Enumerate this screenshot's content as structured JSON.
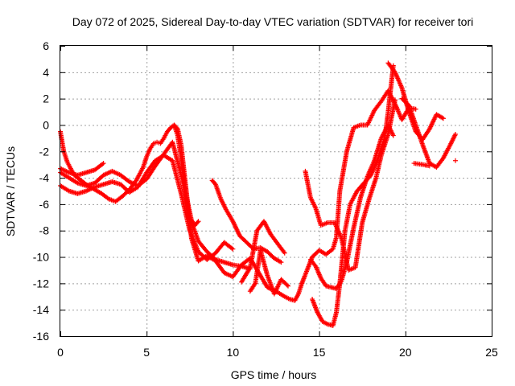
{
  "chart_data": {
    "type": "scatter",
    "title": "Day 072 of 2025, Sidereal Day-to-day VTEC variation (SDTVAR) for receiver tori",
    "xlabel": "GPS time / hours",
    "ylabel": "SDTVAR / TECUs",
    "xlim": [
      0,
      25
    ],
    "ylim": [
      -16,
      6
    ],
    "xticks": [
      0,
      5,
      10,
      15,
      20,
      25
    ],
    "yticks": [
      -16,
      -14,
      -12,
      -10,
      -8,
      -6,
      -4,
      -2,
      0,
      2,
      4,
      6
    ],
    "grid": true,
    "marker": "+",
    "color": "#ff0000",
    "series": [
      {
        "x": [
          0.0,
          0.2,
          0.4,
          0.6,
          0.8,
          1.0,
          1.3,
          1.6,
          2.0,
          2.4,
          2.8,
          3.2,
          3.6,
          4.0,
          4.4,
          4.8,
          5.0,
          5.2,
          5.4,
          5.6,
          5.8,
          6.0,
          6.2,
          6.4,
          6.6,
          6.8,
          7.0,
          7.2,
          7.4,
          7.6,
          7.8,
          8.0
        ],
        "y": [
          -0.5,
          -2.0,
          -2.8,
          -3.3,
          -3.8,
          -4.0,
          -4.3,
          -4.6,
          -4.9,
          -5.2,
          -5.6,
          -5.8,
          -5.4,
          -4.9,
          -4.2,
          -3.2,
          -2.4,
          -1.8,
          -1.4,
          -1.3,
          -1.4,
          -1.0,
          -0.5,
          -0.2,
          0.0,
          -0.8,
          -2.5,
          -4.5,
          -6.0,
          -7.2,
          -7.6,
          -7.3
        ]
      },
      {
        "x": [
          0.0,
          0.5,
          1.0,
          1.5,
          2.0,
          2.5,
          3.0,
          3.5,
          4.0,
          4.5,
          5.0,
          5.5,
          6.0,
          6.5,
          7.0,
          7.5,
          8.0,
          8.5,
          9.0,
          9.5,
          10.0,
          10.5,
          11.0
        ],
        "y": [
          -3.6,
          -4.0,
          -4.4,
          -4.6,
          -4.4,
          -3.8,
          -3.5,
          -3.8,
          -4.3,
          -4.6,
          -4.1,
          -3.1,
          -2.2,
          -1.3,
          -3.8,
          -7.0,
          -8.8,
          -9.6,
          -10.2,
          -10.4,
          -10.6,
          -10.7,
          -10.9
        ]
      },
      {
        "x": [
          0.0,
          0.5,
          1.0,
          1.5,
          2.0,
          2.5,
          3.0,
          3.5,
          4.0,
          4.5,
          5.0,
          5.5,
          6.0,
          6.5,
          7.0,
          7.5,
          8.0,
          8.5,
          9.0,
          9.5,
          10.0
        ],
        "y": [
          -4.6,
          -5.0,
          -5.2,
          -5.0,
          -4.7,
          -4.5,
          -4.3,
          -4.5,
          -5.1,
          -4.7,
          -3.6,
          -2.7,
          -2.3,
          -2.7,
          -5.2,
          -8.0,
          -9.6,
          -10.2,
          -9.7,
          -8.9,
          -9.4
        ]
      },
      {
        "x": [
          0.0,
          0.5,
          1.0,
          1.5,
          2.0,
          2.5
        ],
        "y": [
          -3.3,
          -3.6,
          -3.8,
          -3.6,
          -3.4,
          -2.9
        ]
      },
      {
        "x": [
          6.6,
          6.8,
          7.0,
          7.3,
          7.6,
          8.0,
          8.5,
          9.0,
          9.5,
          10.0,
          10.5,
          11.0,
          11.5,
          12.0,
          12.5,
          13.0,
          13.3,
          13.6,
          13.8,
          14.0
        ],
        "y": [
          0.0,
          -0.3,
          -1.5,
          -5.0,
          -8.6,
          -10.3,
          -9.9,
          -10.3,
          -11.2,
          -11.5,
          -10.6,
          -10.1,
          -11.2,
          -12.3,
          -12.6,
          -13.0,
          -13.2,
          -13.3,
          -12.8,
          -12.0
        ]
      },
      {
        "x": [
          8.8,
          9.0,
          9.3,
          9.6,
          10.0,
          10.4,
          10.8,
          11.2,
          11.6,
          12.0,
          12.4,
          12.8
        ],
        "y": [
          -4.2,
          -4.5,
          -5.6,
          -6.4,
          -7.3,
          -8.4,
          -8.9,
          -9.4,
          -9.3,
          -9.6,
          -10.1,
          -10.4
        ]
      },
      {
        "x": [
          10.5,
          11.0,
          11.4,
          11.8,
          12.2,
          12.6,
          13.0
        ],
        "y": [
          -11.9,
          -10.8,
          -8.0,
          -7.3,
          -8.3,
          -9.0,
          -9.7
        ]
      },
      {
        "x": [
          11.0,
          11.3,
          11.6,
          12.0,
          12.4,
          12.8,
          13.2
        ],
        "y": [
          -12.6,
          -12.0,
          -9.5,
          -11.4,
          -12.8,
          -11.7,
          -12.2
        ]
      },
      {
        "x": [
          14.0,
          14.3,
          14.6,
          15.0,
          15.4,
          15.8,
          16.0,
          16.2,
          16.6,
          17.0,
          17.4,
          17.8,
          18.2,
          18.6,
          19.0,
          19.4,
          19.8,
          20.2,
          20.6
        ],
        "y": [
          -12.0,
          -11.0,
          -10.0,
          -9.5,
          -9.8,
          -9.4,
          -8.5,
          -5.0,
          -2.0,
          -0.2,
          0.0,
          0.0,
          1.1,
          1.8,
          2.6,
          1.6,
          0.4,
          1.3,
          1.2
        ]
      },
      {
        "x": [
          14.2,
          14.5,
          14.8,
          15.1,
          15.5,
          15.9,
          16.3,
          16.7,
          17.1,
          17.5,
          17.9,
          18.3,
          18.6,
          19.0,
          19.4
        ],
        "y": [
          -3.5,
          -5.5,
          -6.3,
          -7.6,
          -7.4,
          -7.4,
          -8.6,
          -11.0,
          -10.8,
          -7.4,
          -5.6,
          -4.0,
          -2.3,
          -0.7,
          1.9
        ]
      },
      {
        "x": [
          14.5,
          14.8,
          15.1,
          15.4,
          15.7,
          16.0,
          16.3,
          16.6,
          17.0,
          17.4,
          17.8,
          18.2,
          18.6,
          19.0,
          19.3
        ],
        "y": [
          -10.2,
          -10.7,
          -11.6,
          -12.2,
          -12.3,
          -12.4,
          -11.8,
          -10.4,
          -7.8,
          -5.5,
          -3.9,
          -2.7,
          -1.0,
          0.0,
          -0.8
        ]
      },
      {
        "x": [
          14.6,
          14.9,
          15.2,
          15.5,
          15.8,
          16.0,
          16.2,
          16.5,
          16.8,
          17.2,
          17.6,
          18.0,
          18.4,
          18.8,
          19.0,
          19.3
        ],
        "y": [
          -13.2,
          -14.2,
          -14.9,
          -15.1,
          -15.2,
          -14.2,
          -12.0,
          -8.0,
          -6.0,
          -5.0,
          -4.4,
          -3.8,
          -2.6,
          -1.0,
          1.0,
          4.5
        ]
      },
      {
        "x": [
          19.0,
          19.4,
          19.8,
          20.2,
          20.6,
          21.0,
          21.4,
          21.8,
          22.2
        ],
        "y": [
          4.7,
          4.0,
          2.8,
          1.0,
          -0.5,
          -1.1,
          -0.3,
          0.8,
          0.5
        ]
      },
      {
        "x": [
          19.8,
          20.2,
          20.6,
          21.0,
          21.4,
          21.8,
          22.2,
          22.6,
          22.9
        ],
        "y": [
          2.0,
          1.5,
          0.0,
          -1.5,
          -2.9,
          -3.2,
          -2.5,
          -1.5,
          -0.7
        ]
      },
      {
        "x": [
          20.5,
          21.0,
          21.4
        ],
        "y": [
          -2.9,
          -3.0,
          -3.1
        ]
      },
      {
        "x": [
          22.9
        ],
        "y": [
          -2.7
        ]
      }
    ]
  }
}
